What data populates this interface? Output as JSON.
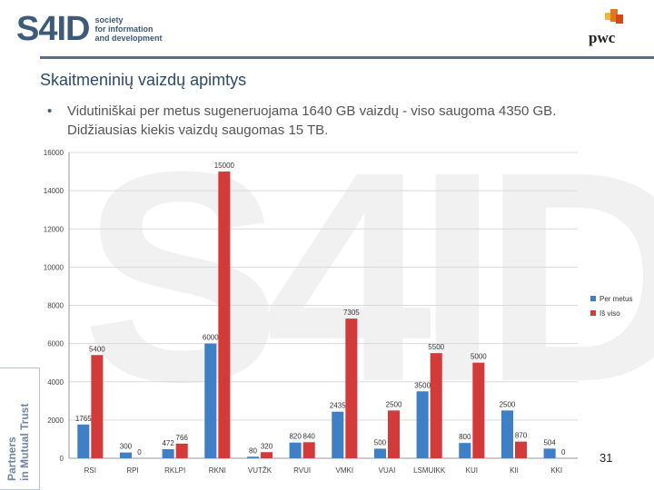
{
  "header": {
    "logo_mark": "S4ID",
    "logo_lines": [
      "society",
      "for information",
      "and development"
    ],
    "pwc_label": "pwc"
  },
  "slide": {
    "title": "Skaitmeninių vaizdų apimtys",
    "bullet": "Vidutiniškai per metus sugeneruojama 1640 GB vaizdų - viso saugoma 4350 GB. Didžiausias kiekis vaizdų saugomas 15 TB.",
    "side_text_1": "Partners",
    "side_text_2": "in Mutual Trust",
    "watermark": "S4ID",
    "slide_number": "31"
  },
  "colors": {
    "per_metus": "#3f7fc6",
    "is_viso": "#d33a3a",
    "brand": "#3d5a7a",
    "pwc_orange": "#e8731d"
  },
  "chart_data": {
    "type": "bar",
    "title": "",
    "xlabel": "",
    "ylabel": "",
    "ylim": [
      0,
      16000
    ],
    "yticks": [
      0,
      2000,
      4000,
      6000,
      8000,
      10000,
      12000,
      14000,
      16000
    ],
    "grid": true,
    "legend_position": "right",
    "categories": [
      "RSI",
      "RPI",
      "RKLPI",
      "RKNI",
      "VUTŽK",
      "RVUI",
      "VMKI",
      "VUAI",
      "LSMUIKK",
      "KUI",
      "KII",
      "KKI"
    ],
    "series": [
      {
        "name": "Per metus",
        "values": [
          1765,
          300,
          472,
          6000,
          80,
          820,
          2435,
          500,
          3500,
          800,
          2500,
          504
        ]
      },
      {
        "name": "Iš viso",
        "values": [
          5400,
          0,
          766,
          15000,
          320,
          840,
          7305,
          2500,
          5500,
          5000,
          870,
          0
        ]
      }
    ],
    "data_labels": {
      "Per metus": [
        "1765",
        "300",
        "472",
        "6000",
        "80",
        "820",
        "2435",
        "500",
        "3500",
        "800",
        "2500",
        "504"
      ],
      "Iš viso": [
        "5400",
        "0",
        "766",
        "15000",
        "320",
        "840",
        "7305",
        "2500",
        "5500",
        "5000",
        "870",
        "0"
      ]
    }
  }
}
